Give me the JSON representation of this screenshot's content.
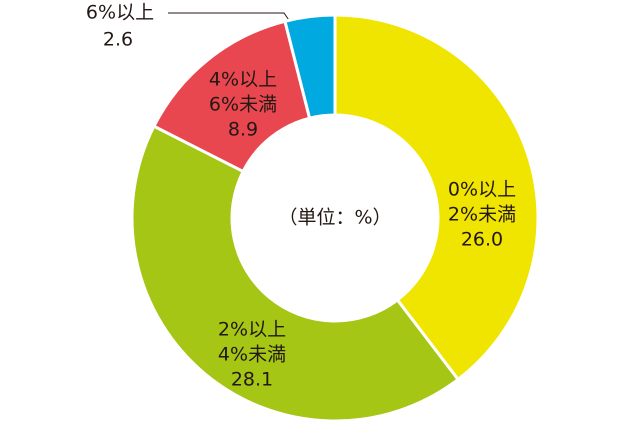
{
  "chart_data": {
    "type": "donut",
    "center_label": "（単位：%）",
    "categories": [
      [
        "0%以上",
        "2%未満"
      ],
      [
        "2%以上",
        "4%未満"
      ],
      [
        "4%以上",
        "6%未満"
      ],
      [
        "6%以上"
      ]
    ],
    "values": [
      26.0,
      28.1,
      8.9,
      2.6
    ],
    "value_labels": [
      "26.0",
      "28.1",
      "8.9",
      "2.6"
    ],
    "colors": [
      "#f0e500",
      "#a5c615",
      "#e8474f",
      "#00a9e0"
    ]
  }
}
